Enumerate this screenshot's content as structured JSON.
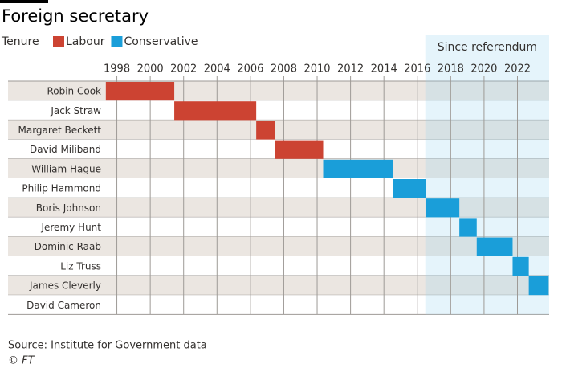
{
  "chart_data": {
    "type": "gantt",
    "title": "Foreign secretary",
    "legend_title": "Tenure",
    "categories": [
      "Robin Cook",
      "Jack Straw",
      "Margaret Beckett",
      "David Miliband",
      "William Hague",
      "Philip Hammond",
      "Boris Johnson",
      "Jeremy Hunt",
      "Dominic Raab",
      "Liz Truss",
      "James Cleverly",
      "David Cameron"
    ],
    "series": [
      {
        "name": "Labour",
        "color": "#cc4332",
        "start": [
          1997.34,
          2001.44,
          2006.35,
          2007.49,
          null,
          null,
          null,
          null,
          null,
          null,
          null,
          null
        ],
        "end": [
          2001.44,
          2006.35,
          2007.49,
          2010.36,
          null,
          null,
          null,
          null,
          null,
          null,
          null,
          null
        ]
      },
      {
        "name": "Conservative",
        "color": "#1a9ed9",
        "start": [
          null,
          null,
          null,
          null,
          2010.36,
          2014.54,
          2016.54,
          2018.52,
          2019.56,
          2021.71,
          2022.68,
          null
        ],
        "end": [
          null,
          null,
          null,
          null,
          2014.54,
          2016.54,
          2018.52,
          2019.56,
          2021.71,
          2022.68,
          2023.87,
          null
        ]
      }
    ],
    "xlim": [
      1997.3,
      2023.9
    ],
    "xticks": [
      1998,
      2000,
      2002,
      2004,
      2006,
      2008,
      2010,
      2012,
      2014,
      2016,
      2018,
      2020,
      2022
    ],
    "highlight": {
      "label": "Since referendum",
      "from": 2016.48
    },
    "grid": true,
    "source": "Source:  Institute for Government data",
    "credit": "© FT"
  }
}
